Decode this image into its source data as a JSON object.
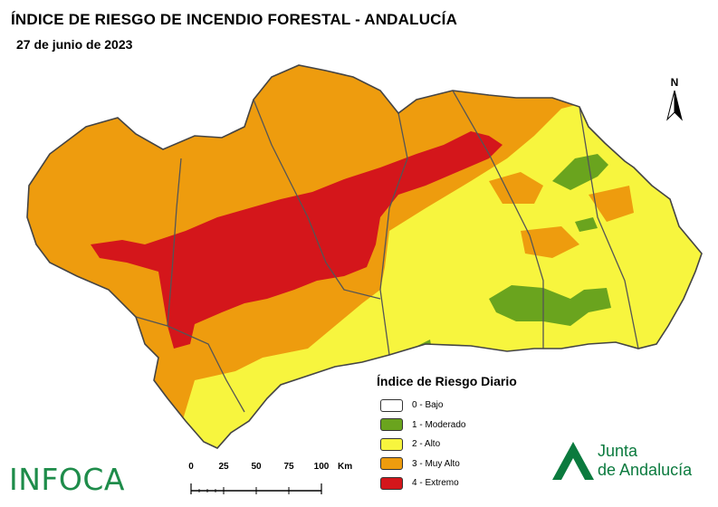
{
  "title": "ÍNDICE DE RIESGO DE INCENDIO FORESTAL - ANDALUCÍA",
  "date": "27 de junio de 2023",
  "north_label": "N",
  "legend": {
    "title": "Índice de Riesgo Diario",
    "items": [
      {
        "label": "0 - Bajo",
        "color": "#ffffff"
      },
      {
        "label": "1 - Moderado",
        "color": "#6aa41e"
      },
      {
        "label": "2 - Alto",
        "color": "#f7f53e"
      },
      {
        "label": "3 - Muy Alto",
        "color": "#ee9c0e"
      },
      {
        "label": "4 - Extremo",
        "color": "#d4161b"
      }
    ]
  },
  "scale": {
    "ticks": [
      "0",
      "25",
      "50",
      "75",
      "100"
    ],
    "unit": "Km"
  },
  "logos": {
    "infoca": "INFOCA",
    "junta_line1": "Junta",
    "junta_line2": "de Andalucía"
  },
  "colors": {
    "bajo": "#ffffff",
    "moderado": "#6aa41e",
    "alto": "#f7f53e",
    "muy_alto": "#ee9c0e",
    "extremo": "#d4161b",
    "border": "#555555",
    "brand_green": "#0b7a3e"
  }
}
